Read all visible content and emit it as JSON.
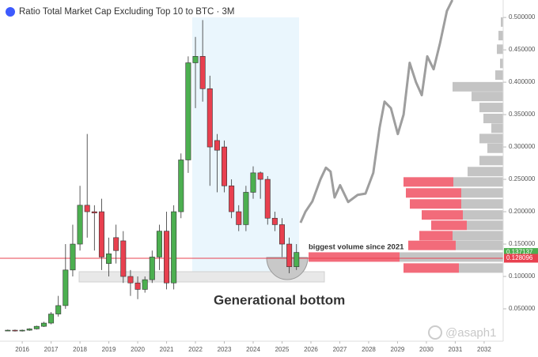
{
  "chart_data": {
    "type": "candlestick",
    "title": "Ratio Total Market Cap Excluding Top 10 to BTC · 3M",
    "xlim": [
      2015.23,
      2032.66
    ],
    "xticks": [
      2016,
      2017,
      2018,
      2019,
      2020,
      2021,
      2022,
      2023,
      2024,
      2025,
      2026,
      2027,
      2028,
      2029,
      2030,
      2031,
      2032
    ],
    "ylim": [
      0,
      0.527
    ],
    "yticks": [
      {
        "value": 0.05,
        "label": "0.050000"
      },
      {
        "value": 0.1,
        "label": "0.100000"
      },
      {
        "value": 0.15,
        "label": "0.150000"
      },
      {
        "value": 0.2,
        "label": "0.200000"
      },
      {
        "value": 0.25,
        "label": "0.250000"
      },
      {
        "value": 0.3,
        "label": "0.300000"
      },
      {
        "value": 0.35,
        "label": "0.350000"
      },
      {
        "value": 0.4,
        "label": "0.400000"
      },
      {
        "value": 0.45,
        "label": "0.450000"
      },
      {
        "value": 0.5,
        "label": "0.500000"
      }
    ],
    "up_color": "#4caf50",
    "down_color": "#e8404f",
    "x": [
      2015.5,
      2015.75,
      2016,
      2016.25,
      2016.5,
      2016.75,
      2017,
      2017.25,
      2017.5,
      2017.75,
      2018,
      2018.25,
      2018.5,
      2018.75,
      2019,
      2019.25,
      2019.5,
      2019.75,
      2020,
      2020.25,
      2020.5,
      2020.75,
      2021,
      2021.25,
      2021.5,
      2021.75,
      2022,
      2022.25,
      2022.5,
      2022.75,
      2023,
      2023.25,
      2023.5,
      2023.75,
      2024,
      2024.25,
      2024.5,
      2024.75,
      2025,
      2025.25,
      2025.5
    ],
    "open": [
      0.017,
      0.017,
      0.016,
      0.017,
      0.019,
      0.023,
      0.028,
      0.042,
      0.055,
      0.11,
      0.15,
      0.21,
      0.2,
      0.2,
      0.12,
      0.16,
      0.155,
      0.1,
      0.09,
      0.08,
      0.095,
      0.13,
      0.17,
      0.09,
      0.2,
      0.28,
      0.43,
      0.44,
      0.39,
      0.31,
      0.3,
      0.24,
      0.2,
      0.18,
      0.23,
      0.26,
      0.25,
      0.19,
      0.18,
      0.15,
      0.115
    ],
    "high": [
      0.018,
      0.018,
      0.018,
      0.02,
      0.024,
      0.03,
      0.045,
      0.07,
      0.15,
      0.18,
      0.24,
      0.32,
      0.21,
      0.22,
      0.16,
      0.18,
      0.17,
      0.11,
      0.1,
      0.1,
      0.14,
      0.18,
      0.2,
      0.21,
      0.29,
      0.44,
      0.47,
      0.496,
      0.41,
      0.32,
      0.31,
      0.25,
      0.21,
      0.24,
      0.27,
      0.262,
      0.255,
      0.2,
      0.19,
      0.16,
      0.15
    ],
    "low": [
      0.016,
      0.015,
      0.015,
      0.016,
      0.018,
      0.022,
      0.026,
      0.038,
      0.05,
      0.1,
      0.14,
      0.16,
      0.14,
      0.11,
      0.1,
      0.12,
      0.09,
      0.07,
      0.065,
      0.075,
      0.09,
      0.11,
      0.08,
      0.08,
      0.19,
      0.26,
      0.36,
      0.37,
      0.24,
      0.23,
      0.23,
      0.19,
      0.17,
      0.17,
      0.22,
      0.22,
      0.18,
      0.17,
      0.13,
      0.105,
      0.11
    ],
    "close": [
      0.017,
      0.016,
      0.017,
      0.019,
      0.023,
      0.028,
      0.042,
      0.055,
      0.11,
      0.15,
      0.21,
      0.2,
      0.198,
      0.13,
      0.135,
      0.14,
      0.1,
      0.09,
      0.08,
      0.095,
      0.13,
      0.17,
      0.09,
      0.2,
      0.28,
      0.43,
      0.44,
      0.39,
      0.3,
      0.295,
      0.24,
      0.2,
      0.18,
      0.23,
      0.26,
      0.25,
      0.19,
      0.18,
      0.15,
      0.115,
      0.137137
    ],
    "projection": {
      "color": "#9e9e9e",
      "x": [
        2025.64,
        2025.81,
        2026.05,
        2026.33,
        2026.52,
        2026.68,
        2026.82,
        2027.01,
        2027.29,
        2027.62,
        2027.89,
        2028.16,
        2028.38,
        2028.55,
        2028.77,
        2029.01,
        2029.21,
        2029.42,
        2029.64,
        2029.84,
        2030.03,
        2030.25,
        2030.47,
        2030.71,
        2030.9
      ],
      "values": [
        0.183,
        0.2,
        0.216,
        0.25,
        0.268,
        0.262,
        0.222,
        0.241,
        0.215,
        0.226,
        0.228,
        0.26,
        0.33,
        0.37,
        0.36,
        0.32,
        0.35,
        0.43,
        0.4,
        0.38,
        0.44,
        0.42,
        0.46,
        0.51,
        0.527
      ]
    },
    "volume_profile": {
      "prices": [
        0.493,
        0.472,
        0.451,
        0.429,
        0.411,
        0.393,
        0.378,
        0.361,
        0.344,
        0.329,
        0.313,
        0.298,
        0.279,
        0.262,
        0.246,
        0.229,
        0.212,
        0.195,
        0.179,
        0.163,
        0.148,
        0.13,
        0.113
      ],
      "red_volume": [
        0,
        0,
        0,
        0,
        0,
        0,
        0,
        0,
        0,
        0,
        0,
        0,
        0,
        0,
        63,
        70,
        65,
        52,
        45,
        42,
        60,
        115,
        70
      ],
      "gray_volume": [
        3,
        6,
        8,
        4,
        10,
        64,
        40,
        30,
        25,
        15,
        30,
        20,
        30,
        45,
        63,
        53,
        53,
        51,
        46,
        64,
        60,
        131,
        56
      ],
      "red_color": "#f26b7a",
      "gray_color": "#c4c4c4"
    },
    "last_price": 0.137137,
    "price_line": 0.128096,
    "annotations": [
      "biggest volume since 2021",
      "Generational bottom"
    ],
    "watermark": "@asaph1"
  }
}
